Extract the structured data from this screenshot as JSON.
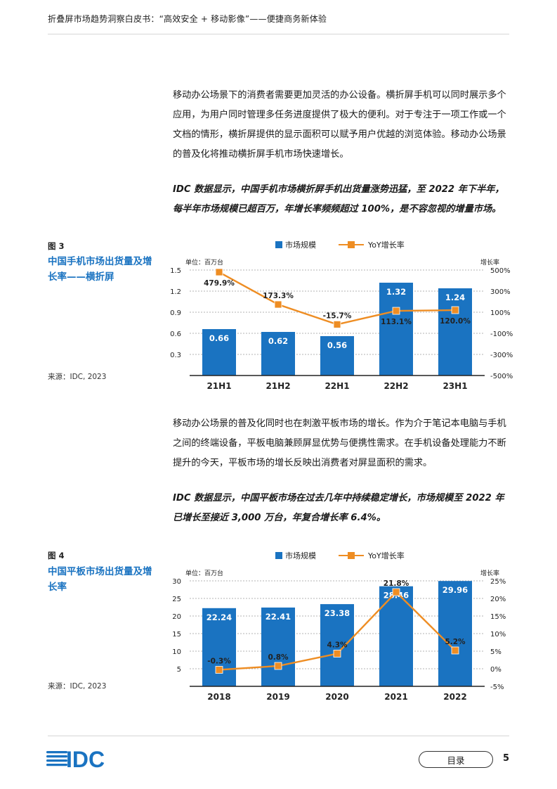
{
  "header": {
    "title": "折叠屏市场趋势洞察白皮书：“高效安全 + 移动影像”——便捷商务新体验"
  },
  "paragraphs": {
    "p1": "移动办公场景下的消费者需要更加灵活的办公设备。横折屏手机可以同时展示多个应用，为用户同时管理多任务进度提供了极大的便利。对于专注于一项工作或一个文档的情形，横折屏提供的显示面积可以赋予用户优越的浏览体验。移动办公场景的普及化将推动横折屏手机市场快速增长。",
    "p2": "IDC 数据显示，中国手机市场横折屏手机出货量涨势迅猛，至 2022 年下半年，每半年市场规模已超百万，年增长率频频超过 100%，是不容忽视的增量市场。",
    "p3": "移动办公场景的普及化同时也在刺激平板市场的增长。作为介于笔记本电脑与手机之间的终端设备，平板电脑兼顾屏显优势与便携性需求。在手机设备处理能力不断提升的今天，平板市场的增长反映出消费者对屏显面积的需求。",
    "p4": "IDC 数据显示，中国平板市场在过去几年中持续稳定增长，市场规模至 2022 年已增长至接近 3,000 万台，年复合增长率 6.4%。"
  },
  "figures": {
    "fig3": {
      "label": "图 3",
      "title": "中国手机市场出货量及增长率——横折屏",
      "source": "来源：IDC, 2023"
    },
    "fig4": {
      "label": "图 4",
      "title": "中国平板市场出货量及增长率",
      "source": "来源：IDC, 2023"
    }
  },
  "colors": {
    "bar": "#1a73c1",
    "line": "#ee8d23",
    "title": "#1a73c1",
    "rule": "#d6d6d6"
  },
  "chart_data": [
    {
      "type": "bar",
      "categories": [
        "21H1",
        "21H2",
        "22H1",
        "22H2",
        "23H1"
      ],
      "series": [
        {
          "name": "市场规模",
          "type": "bar",
          "values": [
            0.66,
            0.62,
            0.56,
            1.32,
            1.24
          ],
          "labels": [
            "0.66",
            "0.62",
            "0.56",
            "1.32",
            "1.24"
          ]
        },
        {
          "name": "YoY 增长率",
          "type": "line",
          "axis": "right",
          "values": [
            479.9,
            173.3,
            -15.7,
            113.1,
            120.0
          ],
          "labels": [
            "479.9%",
            "173.3%",
            "-15.7%",
            "113.1%",
            "120.0%"
          ]
        }
      ],
      "legend": [
        "市场规模",
        "YoY增长率"
      ],
      "ylabel": "单位：百万台",
      "y2label": "增长率",
      "ylim": [
        0,
        1.5
      ],
      "yticks": [
        0.3,
        0.6,
        0.9,
        1.2,
        1.5
      ],
      "ytick_labels": [
        "0.3",
        "0.6",
        "0.9",
        "1.2",
        "1.5"
      ],
      "y2lim": [
        -500,
        500
      ],
      "y2ticks": [
        -500,
        -300,
        -100,
        100,
        300,
        500
      ],
      "y2tick_labels": [
        "-500%",
        "-300%",
        "-100%",
        "100%",
        "300%",
        "500%"
      ],
      "legend_position": "top-center",
      "grid": "horizontal-dashed"
    },
    {
      "type": "bar",
      "categories": [
        "2018",
        "2019",
        "2020",
        "2021",
        "2022"
      ],
      "series": [
        {
          "name": "市场规模",
          "type": "bar",
          "values": [
            22.24,
            22.41,
            23.38,
            28.46,
            29.96
          ],
          "labels": [
            "22.24",
            "22.41",
            "23.38",
            "28.46",
            "29.96"
          ]
        },
        {
          "name": "YoY 增长率",
          "type": "line",
          "axis": "right",
          "values": [
            -0.3,
            0.8,
            4.3,
            21.8,
            5.2
          ],
          "labels": [
            "-0.3%",
            "0.8%",
            "4.3%",
            "21.8%",
            "5.2%"
          ]
        }
      ],
      "legend": [
        "市场规模",
        "YoY增长率"
      ],
      "ylabel": "单位：百万台",
      "y2label": "增长率",
      "ylim": [
        0,
        30
      ],
      "yticks": [
        5,
        10,
        15,
        20,
        25,
        30
      ],
      "ytick_labels": [
        "5",
        "10",
        "15",
        "20",
        "25",
        "30"
      ],
      "y2lim": [
        -5,
        25
      ],
      "y2ticks": [
        -5,
        0,
        5,
        10,
        15,
        20,
        25
      ],
      "y2tick_labels": [
        "-5%",
        "0%",
        "5%",
        "10%",
        "15%",
        "20%",
        "25%"
      ],
      "legend_position": "top-center",
      "grid": "horizontal-dashed"
    }
  ],
  "footer": {
    "logo_text": "IDC",
    "toc_label": "目录",
    "page_number": "5"
  }
}
